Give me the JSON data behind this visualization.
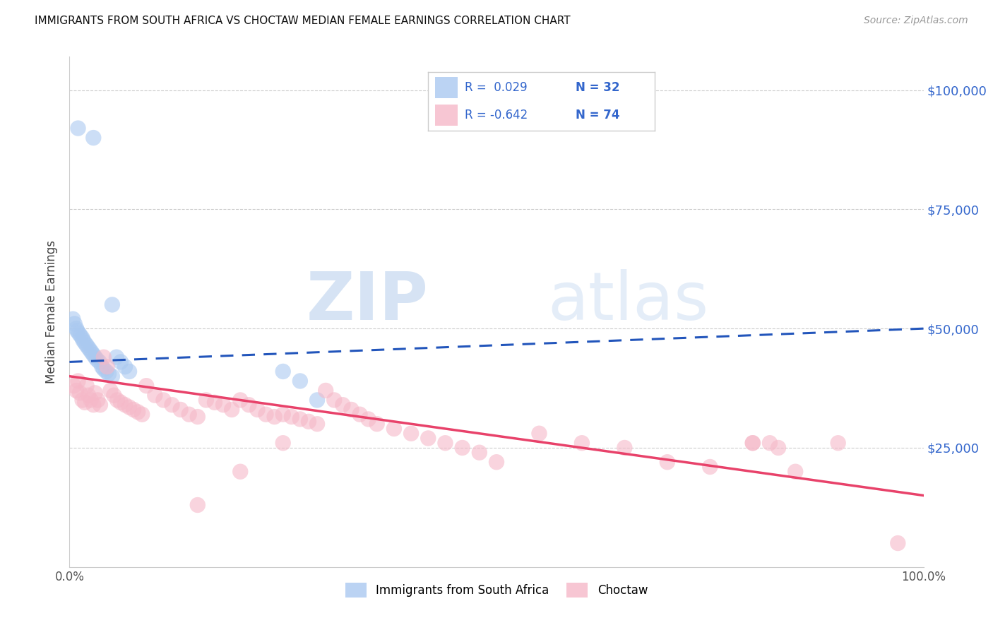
{
  "title": "IMMIGRANTS FROM SOUTH AFRICA VS CHOCTAW MEDIAN FEMALE EARNINGS CORRELATION CHART",
  "source": "Source: ZipAtlas.com",
  "ylabel": "Median Female Earnings",
  "xlim": [
    0,
    1.0
  ],
  "ylim": [
    0,
    107000
  ],
  "xtick_labels": [
    "0.0%",
    "100.0%"
  ],
  "ytick_labels": [
    "$25,000",
    "$50,000",
    "$75,000",
    "$100,000"
  ],
  "ytick_values": [
    25000,
    50000,
    75000,
    100000
  ],
  "blue_color": "#aac9f0",
  "pink_color": "#f5b8c8",
  "blue_line_color": "#2255bb",
  "pink_line_color": "#e8426a",
  "R_blue": 0.029,
  "N_blue": 32,
  "R_pink": -0.642,
  "N_pink": 74,
  "legend_label_blue": "Immigrants from South Africa",
  "legend_label_pink": "Choctaw",
  "watermark_zip": "ZIP",
  "watermark_atlas": "atlas",
  "blue_line_x0": 0.0,
  "blue_line_x1": 1.0,
  "blue_line_y0": 43000,
  "blue_line_y1": 50000,
  "pink_line_x0": 0.0,
  "pink_line_x1": 1.0,
  "pink_line_y0": 40000,
  "pink_line_y1": 15000,
  "blue_scatter_x": [
    0.01,
    0.028,
    0.004,
    0.006,
    0.008,
    0.009,
    0.011,
    0.013,
    0.015,
    0.016,
    0.018,
    0.02,
    0.022,
    0.024,
    0.026,
    0.028,
    0.03,
    0.032,
    0.035,
    0.038,
    0.04,
    0.043,
    0.046,
    0.05,
    0.055,
    0.06,
    0.065,
    0.07,
    0.25,
    0.27,
    0.29,
    0.05
  ],
  "blue_scatter_y": [
    92000,
    90000,
    52000,
    51000,
    50000,
    49500,
    49000,
    48500,
    48000,
    47500,
    47000,
    46500,
    46000,
    45500,
    45000,
    44500,
    44000,
    43500,
    43000,
    42000,
    41500,
    41000,
    40500,
    40000,
    44000,
    43000,
    42000,
    41000,
    41000,
    39000,
    35000,
    55000
  ],
  "pink_scatter_x": [
    0.005,
    0.008,
    0.01,
    0.012,
    0.015,
    0.018,
    0.02,
    0.022,
    0.025,
    0.028,
    0.03,
    0.033,
    0.036,
    0.04,
    0.044,
    0.048,
    0.052,
    0.056,
    0.06,
    0.065,
    0.07,
    0.075,
    0.08,
    0.085,
    0.09,
    0.1,
    0.11,
    0.12,
    0.13,
    0.14,
    0.15,
    0.16,
    0.17,
    0.18,
    0.19,
    0.2,
    0.21,
    0.22,
    0.23,
    0.24,
    0.25,
    0.26,
    0.27,
    0.28,
    0.29,
    0.3,
    0.31,
    0.32,
    0.33,
    0.34,
    0.35,
    0.36,
    0.38,
    0.4,
    0.42,
    0.44,
    0.46,
    0.48,
    0.5,
    0.55,
    0.6,
    0.65,
    0.7,
    0.75,
    0.8,
    0.82,
    0.83,
    0.85,
    0.9,
    0.97,
    0.15,
    0.2,
    0.25,
    0.8
  ],
  "pink_scatter_y": [
    38000,
    37000,
    39000,
    36500,
    35000,
    34500,
    38000,
    36000,
    35000,
    34000,
    36500,
    35000,
    34000,
    44000,
    42000,
    37000,
    36000,
    35000,
    34500,
    34000,
    33500,
    33000,
    32500,
    32000,
    38000,
    36000,
    35000,
    34000,
    33000,
    32000,
    31500,
    35000,
    34500,
    34000,
    33000,
    35000,
    34000,
    33000,
    32000,
    31500,
    32000,
    31500,
    31000,
    30500,
    30000,
    37000,
    35000,
    34000,
    33000,
    32000,
    31000,
    30000,
    29000,
    28000,
    27000,
    26000,
    25000,
    24000,
    22000,
    28000,
    26000,
    25000,
    22000,
    21000,
    26000,
    26000,
    25000,
    20000,
    26000,
    5000,
    13000,
    20000,
    26000,
    26000
  ]
}
